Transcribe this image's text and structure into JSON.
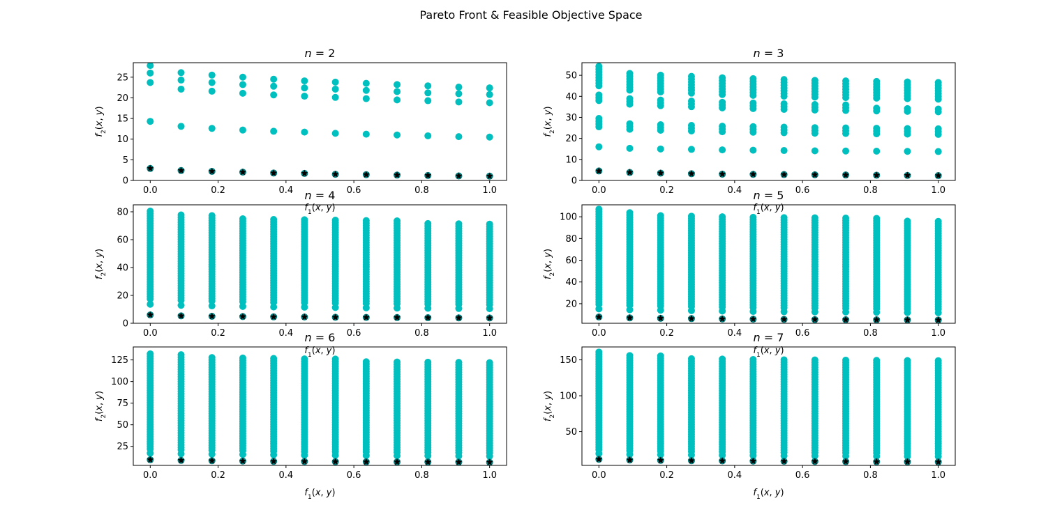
{
  "figure": {
    "title": "Pareto Front & Feasible Objective Space",
    "colors": {
      "feasible": "#00bfbf",
      "front_face": "#008080",
      "front_edge": "#000000",
      "axes": "#000000"
    }
  },
  "chart_data": [
    {
      "type": "scatter",
      "title": "n = 2",
      "xlabel": "f1(x, y)",
      "ylabel": "f2(x, y)",
      "xlim": [
        -0.05,
        1.05
      ],
      "ylim": [
        0,
        28.5
      ],
      "xticks": [
        0.0,
        0.2,
        0.4,
        0.6,
        0.8,
        1.0
      ],
      "xtick_labels": [
        "0.0",
        "0.2",
        "0.4",
        "0.6",
        "0.8",
        "1.0"
      ],
      "yticks": [
        0,
        5,
        10,
        15,
        20,
        25
      ],
      "ytick_labels": [
        "0",
        "5",
        "10",
        "15",
        "20",
        "25"
      ],
      "x": [
        0.0,
        0.0909,
        0.1818,
        0.2727,
        0.3636,
        0.4545,
        0.5455,
        0.6364,
        0.7273,
        0.8182,
        0.9091,
        1.0
      ],
      "series": [
        {
          "role": "feasible",
          "y_per_x": [
            [
              27.8,
              26.0,
              23.7,
              14.3
            ],
            [
              26.1,
              24.3,
              22.1,
              13.1
            ],
            [
              25.5,
              23.7,
              21.6,
              12.6
            ],
            [
              25.0,
              23.2,
              21.1,
              12.2
            ],
            [
              24.5,
              22.8,
              20.7,
              11.9
            ],
            [
              24.1,
              22.4,
              20.4,
              11.7
            ],
            [
              23.8,
              22.1,
              20.1,
              11.4
            ],
            [
              23.5,
              21.8,
              19.8,
              11.2
            ],
            [
              23.2,
              21.5,
              19.5,
              11.0
            ],
            [
              22.9,
              21.2,
              19.3,
              10.8
            ],
            [
              22.6,
              21.0,
              19.0,
              10.6
            ],
            [
              22.4,
              20.8,
              18.8,
              10.5
            ]
          ]
        },
        {
          "role": "pareto_front",
          "y": [
            2.9,
            2.4,
            2.2,
            2.0,
            1.8,
            1.7,
            1.5,
            1.4,
            1.3,
            1.2,
            1.1,
            1.05
          ]
        }
      ]
    },
    {
      "type": "scatter",
      "title": "n = 3",
      "xlabel": "f1(x, y)",
      "ylabel": "f2(x, y)",
      "xlim": [
        -0.05,
        1.05
      ],
      "ylim": [
        0,
        56
      ],
      "xticks": [
        0.0,
        0.2,
        0.4,
        0.6,
        0.8,
        1.0
      ],
      "xtick_labels": [
        "0.0",
        "0.2",
        "0.4",
        "0.6",
        "0.8",
        "1.0"
      ],
      "yticks": [
        0,
        10,
        20,
        30,
        40,
        50
      ],
      "ytick_labels": [
        "0",
        "10",
        "20",
        "30",
        "40",
        "50"
      ],
      "x": [
        0.0,
        0.0909,
        0.1818,
        0.2727,
        0.3636,
        0.4545,
        0.5455,
        0.6364,
        0.7273,
        0.8182,
        0.9091,
        1.0
      ],
      "series": [
        {
          "role": "feasible",
          "y_top": [
            54.5,
            52.0,
            51.0,
            50.3,
            49.5,
            49.0,
            48.5,
            48.0,
            47.7,
            47.4,
            47.1,
            46.8
          ],
          "clusters": [
            [
              45.0,
              48.0
            ],
            [
              38.0,
              41.0
            ],
            [
              25.5,
              29.5
            ],
            [
              16.0,
              16.5
            ]
          ]
        },
        {
          "role": "pareto_front",
          "y": [
            4.5,
            3.8,
            3.5,
            3.2,
            3.0,
            2.9,
            2.8,
            2.7,
            2.6,
            2.5,
            2.4,
            2.3
          ]
        }
      ]
    },
    {
      "type": "scatter",
      "title": "n = 4",
      "xlabel": "f1(x, y)",
      "ylabel": "f2(x, y)",
      "xlim": [
        -0.05,
        1.05
      ],
      "ylim": [
        0,
        85
      ],
      "xticks": [
        0.0,
        0.2,
        0.4,
        0.6,
        0.8,
        1.0
      ],
      "xtick_labels": [
        "0.0",
        "0.2",
        "0.4",
        "0.6",
        "0.8",
        "1.0"
      ],
      "yticks": [
        0,
        20,
        40,
        60,
        80
      ],
      "ytick_labels": [
        "0",
        "20",
        "40",
        "60",
        "80"
      ],
      "x": [
        0.0,
        0.0909,
        0.1818,
        0.2727,
        0.3636,
        0.4545,
        0.5455,
        0.6364,
        0.7273,
        0.8182,
        0.9091,
        1.0
      ],
      "series": [
        {
          "role": "feasible",
          "y_top": [
            81.5,
            78.5,
            77.5,
            76.5,
            76.0,
            75.0,
            74.5,
            74.0,
            73.5,
            73.0,
            72.5,
            72.0
          ],
          "y_bottom": [
            17.5,
            16.5,
            16.0,
            15.5,
            15.0,
            14.8,
            14.5,
            14.2,
            14.0,
            13.8,
            13.6,
            13.4
          ]
        },
        {
          "role": "pareto_front",
          "y": [
            6.0,
            5.3,
            5.0,
            4.8,
            4.6,
            4.5,
            4.3,
            4.2,
            4.1,
            4.0,
            3.9,
            3.8
          ]
        }
      ]
    },
    {
      "type": "scatter",
      "title": "n = 5",
      "xlabel": "f1(x, y)",
      "ylabel": "f2(x, y)",
      "xlim": [
        -0.05,
        1.05
      ],
      "ylim": [
        2,
        111
      ],
      "xticks": [
        0.0,
        0.2,
        0.4,
        0.6,
        0.8,
        1.0
      ],
      "xtick_labels": [
        "0.0",
        "0.2",
        "0.4",
        "0.6",
        "0.8",
        "1.0"
      ],
      "yticks": [
        20,
        40,
        60,
        80,
        100
      ],
      "ytick_labels": [
        "20",
        "40",
        "60",
        "80",
        "100"
      ],
      "x": [
        0.0,
        0.0909,
        0.1818,
        0.2727,
        0.3636,
        0.4545,
        0.5455,
        0.6364,
        0.7273,
        0.8182,
        0.9091,
        1.0
      ],
      "series": [
        {
          "role": "feasible",
          "y_top": [
            107.5,
            104.5,
            103.0,
            102.0,
            101.0,
            100.5,
            100.0,
            99.5,
            99.0,
            98.5,
            98.0,
            97.5
          ],
          "y_bottom": [
            19.5,
            18.5,
            18.0,
            17.5,
            17.0,
            16.5,
            16.2,
            16.0,
            15.8,
            15.5,
            15.2,
            15.0
          ]
        },
        {
          "role": "pareto_front",
          "y": [
            7.8,
            7.0,
            6.6,
            6.3,
            6.0,
            5.8,
            5.6,
            5.4,
            5.3,
            5.2,
            5.1,
            5.0
          ]
        }
      ]
    },
    {
      "type": "scatter",
      "title": "n = 6",
      "xlabel": "f1(x, y)",
      "ylabel": "f2(x, y)",
      "xlim": [
        -0.05,
        1.05
      ],
      "ylim": [
        3,
        140
      ],
      "xticks": [
        0.0,
        0.2,
        0.4,
        0.6,
        0.8,
        1.0
      ],
      "xtick_labels": [
        "0.0",
        "0.2",
        "0.4",
        "0.6",
        "0.8",
        "1.0"
      ],
      "yticks": [
        25,
        50,
        75,
        100,
        125
      ],
      "ytick_labels": [
        "25",
        "50",
        "75",
        "100",
        "125"
      ],
      "x": [
        0.0,
        0.0909,
        0.1818,
        0.2727,
        0.3636,
        0.4545,
        0.5455,
        0.6364,
        0.7273,
        0.8182,
        0.9091,
        1.0
      ],
      "series": [
        {
          "role": "feasible",
          "y_top": [
            134.0,
            131.0,
            129.5,
            128.5,
            127.5,
            127.0,
            126.0,
            125.5,
            125.0,
            124.5,
            124.0,
            123.5
          ],
          "y_bottom": [
            22.0,
            21.0,
            20.5,
            20.0,
            19.5,
            19.0,
            18.8,
            18.5,
            18.2,
            18.0,
            17.8,
            17.5
          ]
        },
        {
          "role": "pareto_front",
          "y": [
            9.5,
            8.8,
            8.4,
            8.0,
            7.7,
            7.5,
            7.3,
            7.1,
            7.0,
            6.9,
            6.8,
            6.6
          ]
        }
      ]
    },
    {
      "type": "scatter",
      "title": "n = 7",
      "xlabel": "f1(x, y)",
      "ylabel": "f2(x, y)",
      "xlim": [
        -0.05,
        1.05
      ],
      "ylim": [
        3,
        168
      ],
      "xticks": [
        0.0,
        0.2,
        0.4,
        0.6,
        0.8,
        1.0
      ],
      "xtick_labels": [
        "0.0",
        "0.2",
        "0.4",
        "0.6",
        "0.8",
        "1.0"
      ],
      "yticks": [
        50,
        100,
        150
      ],
      "ytick_labels": [
        "50",
        "100",
        "150"
      ],
      "x": [
        0.0,
        0.0909,
        0.1818,
        0.2727,
        0.3636,
        0.4545,
        0.5455,
        0.6364,
        0.7273,
        0.8182,
        0.9091,
        1.0
      ],
      "series": [
        {
          "role": "feasible",
          "y_top": [
            161.0,
            157.5,
            156.0,
            154.5,
            153.5,
            153.0,
            152.0,
            151.5,
            150.5,
            150.0,
            149.5,
            149.0
          ],
          "y_bottom": [
            25.0,
            23.5,
            23.0,
            22.5,
            22.0,
            21.5,
            21.0,
            20.8,
            20.5,
            20.2,
            20.0,
            19.8
          ]
        },
        {
          "role": "pareto_front",
          "y": [
            11.5,
            10.5,
            10.0,
            9.6,
            9.3,
            9.0,
            8.7,
            8.5,
            8.3,
            8.1,
            8.0,
            7.8
          ]
        }
      ]
    }
  ]
}
